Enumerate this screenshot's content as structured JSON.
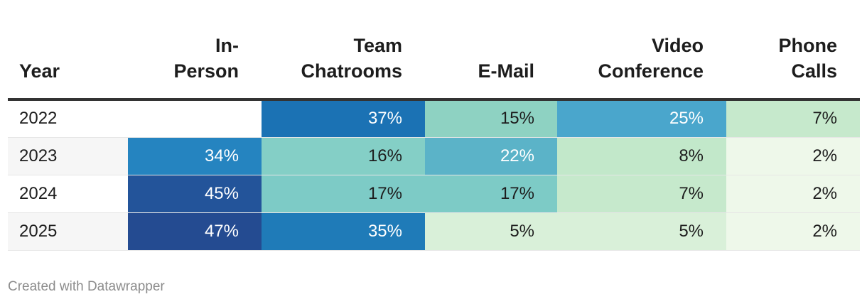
{
  "chart_data": {
    "type": "table",
    "columns": [
      "Year",
      "In-\nPerson",
      "Team\nChatrooms",
      "E-Mail",
      "Video\nConference",
      "Phone\nCalls"
    ],
    "rows": [
      {
        "year": "2022",
        "cells": [
          {
            "text": "",
            "value": null,
            "color": "#ffffff",
            "text_color": "#1d1d1d"
          },
          {
            "text": "37%",
            "value": 37,
            "color": "#1b72b4",
            "text_color": "#ffffff"
          },
          {
            "text": "15%",
            "value": 15,
            "color": "#8ed2c2",
            "text_color": "#1d1d1d"
          },
          {
            "text": "25%",
            "value": 25,
            "color": "#4aa6cc",
            "text_color": "#ffffff"
          },
          {
            "text": "7%",
            "value": 7,
            "color": "#c6e9cc",
            "text_color": "#1d1d1d"
          }
        ]
      },
      {
        "year": "2023",
        "cells": [
          {
            "text": "34%",
            "value": 34,
            "color": "#2584c0",
            "text_color": "#ffffff"
          },
          {
            "text": "16%",
            "value": 16,
            "color": "#84cfc6",
            "text_color": "#1d1d1d"
          },
          {
            "text": "22%",
            "value": 22,
            "color": "#5bb3c8",
            "text_color": "#ffffff"
          },
          {
            "text": "8%",
            "value": 8,
            "color": "#c2e8ca",
            "text_color": "#1d1d1d"
          },
          {
            "text": "2%",
            "value": 2,
            "color": "#eef8ea",
            "text_color": "#1d1d1d"
          }
        ]
      },
      {
        "year": "2024",
        "cells": [
          {
            "text": "45%",
            "value": 45,
            "color": "#23549a",
            "text_color": "#ffffff"
          },
          {
            "text": "17%",
            "value": 17,
            "color": "#7dcbc6",
            "text_color": "#1d1d1d"
          },
          {
            "text": "17%",
            "value": 17,
            "color": "#7dcbc6",
            "text_color": "#1d1d1d"
          },
          {
            "text": "7%",
            "value": 7,
            "color": "#c6e9cc",
            "text_color": "#1d1d1d"
          },
          {
            "text": "2%",
            "value": 2,
            "color": "#eef8ea",
            "text_color": "#1d1d1d"
          }
        ]
      },
      {
        "year": "2025",
        "cells": [
          {
            "text": "47%",
            "value": 47,
            "color": "#244b91",
            "text_color": "#ffffff"
          },
          {
            "text": "35%",
            "value": 35,
            "color": "#1f7bb8",
            "text_color": "#ffffff"
          },
          {
            "text": "5%",
            "value": 5,
            "color": "#d9f0d9",
            "text_color": "#1d1d1d"
          },
          {
            "text": "5%",
            "value": 5,
            "color": "#d9f0d9",
            "text_color": "#1d1d1d"
          },
          {
            "text": "2%",
            "value": 2,
            "color": "#eef8ea",
            "text_color": "#1d1d1d"
          }
        ]
      }
    ]
  },
  "footer": {
    "credit": "Created with Datawrapper"
  }
}
